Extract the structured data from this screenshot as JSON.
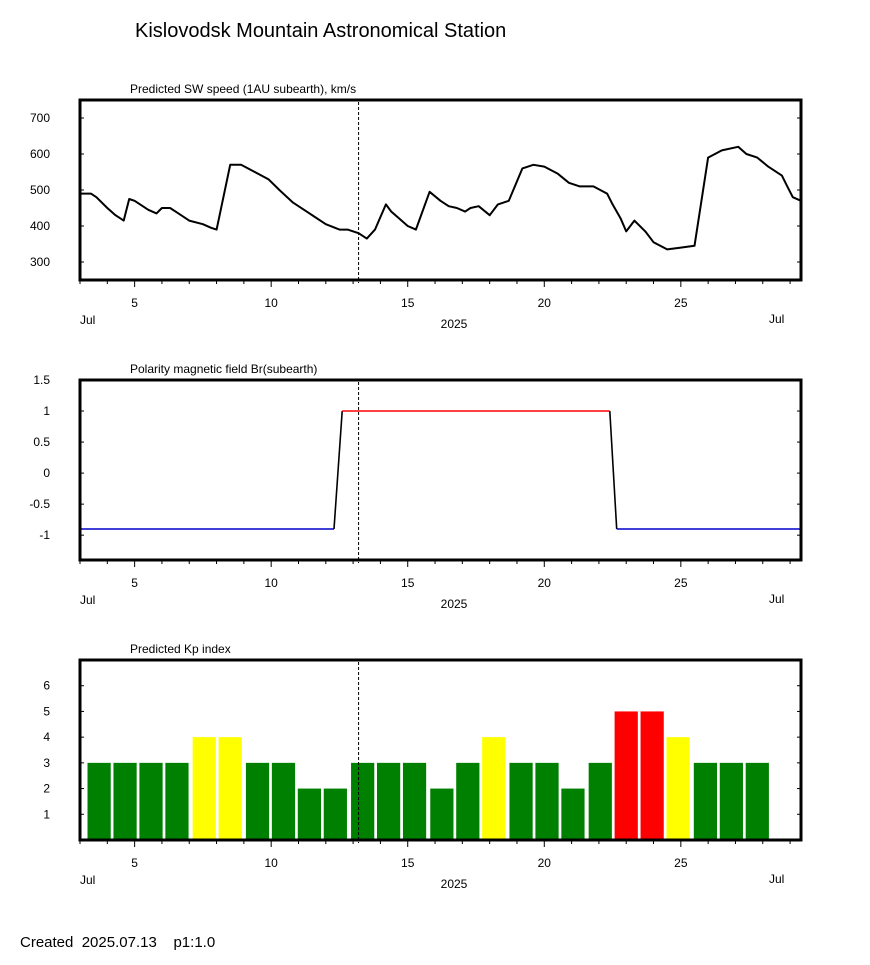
{
  "title": "Kislovodsk Mountain Astronomical Station",
  "footer": {
    "created_label": "Created",
    "created_date": "2025.07.13",
    "page": "p1:1.0"
  },
  "colors": {
    "line": "#000000",
    "positive_polarity": "#ff0000",
    "negative_polarity": "#0000cc",
    "kp_quiet": "#008000",
    "kp_active": "#ffff00",
    "kp_storm": "#ff0000"
  },
  "chart_data": [
    {
      "type": "line",
      "title": "Predicted SW speed (1AU subearth), km/s",
      "xlabel": "2025",
      "x_month_labels": [
        "Jul",
        "Jul"
      ],
      "xticks": [
        5,
        10,
        15,
        20,
        25
      ],
      "xlim": [
        3.0,
        29.4
      ],
      "ylim": [
        250,
        750
      ],
      "yticks": [
        300,
        400,
        500,
        600,
        700
      ],
      "ytick_labels": [
        "300",
        "400",
        "500",
        "600",
        "700"
      ],
      "current_time_marker": 13.2,
      "series": [
        {
          "x": [
            3.0,
            3.4,
            3.6,
            4.0,
            4.3,
            4.6,
            4.8,
            5.0,
            5.3,
            5.5,
            5.8,
            6.0,
            6.3,
            6.5,
            7.0,
            7.5,
            7.8,
            8.0,
            8.5,
            8.9,
            9.4,
            9.9,
            10.3,
            10.8,
            11.3,
            11.6,
            12.0,
            12.5,
            12.8,
            13.2,
            13.5,
            13.8,
            14.2,
            14.4,
            14.7,
            15.0,
            15.3,
            15.8,
            16.2,
            16.5,
            16.8,
            17.1,
            17.3,
            17.6,
            18.0,
            18.3,
            18.7,
            19.2,
            19.6,
            20.0,
            20.5,
            20.9,
            21.3,
            21.8,
            22.3,
            22.5,
            22.8,
            23.0,
            23.3,
            23.7,
            24.0,
            24.5,
            25.0,
            25.5,
            26.0,
            26.5,
            27.1,
            27.4,
            27.8,
            28.2,
            28.7,
            28.9,
            29.1,
            29.4
          ],
          "y": [
            490,
            490,
            480,
            450,
            430,
            415,
            475,
            470,
            455,
            445,
            435,
            450,
            450,
            440,
            415,
            405,
            395,
            390,
            570,
            570,
            550,
            530,
            500,
            465,
            440,
            425,
            405,
            390,
            390,
            380,
            365,
            390,
            460,
            440,
            420,
            400,
            390,
            495,
            470,
            455,
            450,
            440,
            450,
            455,
            430,
            460,
            470,
            560,
            570,
            565,
            545,
            520,
            510,
            510,
            490,
            460,
            420,
            385,
            415,
            385,
            355,
            335,
            340,
            345,
            590,
            610,
            620,
            600,
            590,
            565,
            540,
            510,
            480,
            470
          ],
          "y_note": "estimated from gridlines"
        }
      ]
    },
    {
      "type": "line",
      "title": "Polarity magnetic field  Br(subearth)",
      "xlabel": "2025",
      "x_month_labels": [
        "Jul",
        "Jul"
      ],
      "xticks": [
        5,
        10,
        15,
        20,
        25
      ],
      "xlim": [
        3.0,
        29.4
      ],
      "ylim": [
        -1.4,
        1.5
      ],
      "yticks": [
        -1,
        -0.5,
        0,
        0.5,
        1,
        1.5
      ],
      "ytick_labels": [
        "-1",
        "-0.5",
        "0",
        "0.5",
        "1",
        "1.5"
      ],
      "current_time_marker": 13.2,
      "series": [
        {
          "x": [
            3.0,
            12.3
          ],
          "y": [
            -0.9,
            -0.9
          ],
          "polarity": "negative"
        },
        {
          "x": [
            12.3,
            12.6
          ],
          "y": [
            -0.9,
            1.0
          ],
          "polarity": "transition"
        },
        {
          "x": [
            12.6,
            22.4
          ],
          "y": [
            1.0,
            1.0
          ],
          "polarity": "positive"
        },
        {
          "x": [
            22.4,
            22.65
          ],
          "y": [
            1.0,
            -0.9
          ],
          "polarity": "transition"
        },
        {
          "x": [
            22.65,
            29.4
          ],
          "y": [
            -0.9,
            -0.9
          ],
          "polarity": "negative"
        }
      ]
    },
    {
      "type": "bar",
      "title": "Predicted Kp index",
      "xlabel": "2025",
      "x_month_labels": [
        "Jul",
        "Jul"
      ],
      "xticks": [
        5,
        10,
        15,
        20,
        25
      ],
      "xlim": [
        3.0,
        29.4
      ],
      "ylim": [
        0,
        7
      ],
      "yticks": [
        1,
        2,
        3,
        4,
        5,
        6
      ],
      "ytick_labels": [
        "1",
        "2",
        "3",
        "4",
        "5",
        "6"
      ],
      "current_time_marker": 13.2,
      "bar_width_days": 0.85,
      "x": [
        3.7,
        4.65,
        5.6,
        6.55,
        7.55,
        8.5,
        9.5,
        10.45,
        11.4,
        12.35,
        13.35,
        14.3,
        15.25,
        16.25,
        17.2,
        18.15,
        19.15,
        20.1,
        21.05,
        22.05,
        23.0,
        23.95,
        24.9,
        25.9,
        26.85,
        27.8
      ],
      "values": [
        3,
        3,
        3,
        3,
        4,
        4,
        3,
        3,
        2,
        2,
        3,
        3,
        3,
        2,
        3,
        4,
        3,
        3,
        2,
        3,
        5,
        5,
        4,
        3,
        3,
        3
      ],
      "bar_colors": [
        "#008000",
        "#008000",
        "#008000",
        "#008000",
        "#ffff00",
        "#ffff00",
        "#008000",
        "#008000",
        "#008000",
        "#008000",
        "#008000",
        "#008000",
        "#008000",
        "#008000",
        "#008000",
        "#ffff00",
        "#008000",
        "#008000",
        "#008000",
        "#008000",
        "#ff0000",
        "#ff0000",
        "#ffff00",
        "#008000",
        "#008000",
        "#008000"
      ]
    }
  ]
}
